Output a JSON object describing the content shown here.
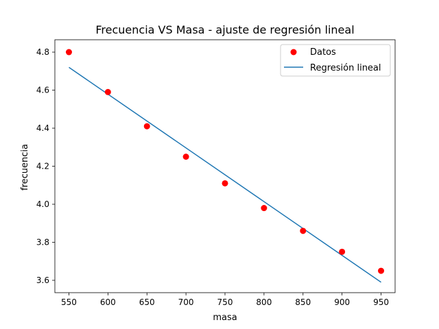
{
  "chart_data": {
    "type": "scatter",
    "title": "Frecuencia VS Masa - ajuste de regresión lineal",
    "xlabel": "masa",
    "ylabel": "frecuencia",
    "xlim": [
      532,
      968
    ],
    "ylim": [
      3.535,
      4.865
    ],
    "xticks": [
      550,
      600,
      650,
      700,
      750,
      800,
      850,
      900,
      950
    ],
    "yticks": [
      3.6,
      3.8,
      4.0,
      4.2,
      4.4,
      4.6,
      4.8
    ],
    "grid": false,
    "legend_position": "top-right",
    "series": [
      {
        "name": "Datos",
        "kind": "scatter",
        "color": "#ff0000",
        "x": [
          550,
          600,
          650,
          700,
          750,
          800,
          850,
          900,
          950
        ],
        "y": [
          4.8,
          4.59,
          4.41,
          4.25,
          4.11,
          3.98,
          3.86,
          3.75,
          3.65
        ]
      },
      {
        "name": "Regresión lineal",
        "kind": "line",
        "color": "#1f77b4",
        "x": [
          550,
          950
        ],
        "y": [
          4.72,
          3.59
        ]
      }
    ]
  }
}
